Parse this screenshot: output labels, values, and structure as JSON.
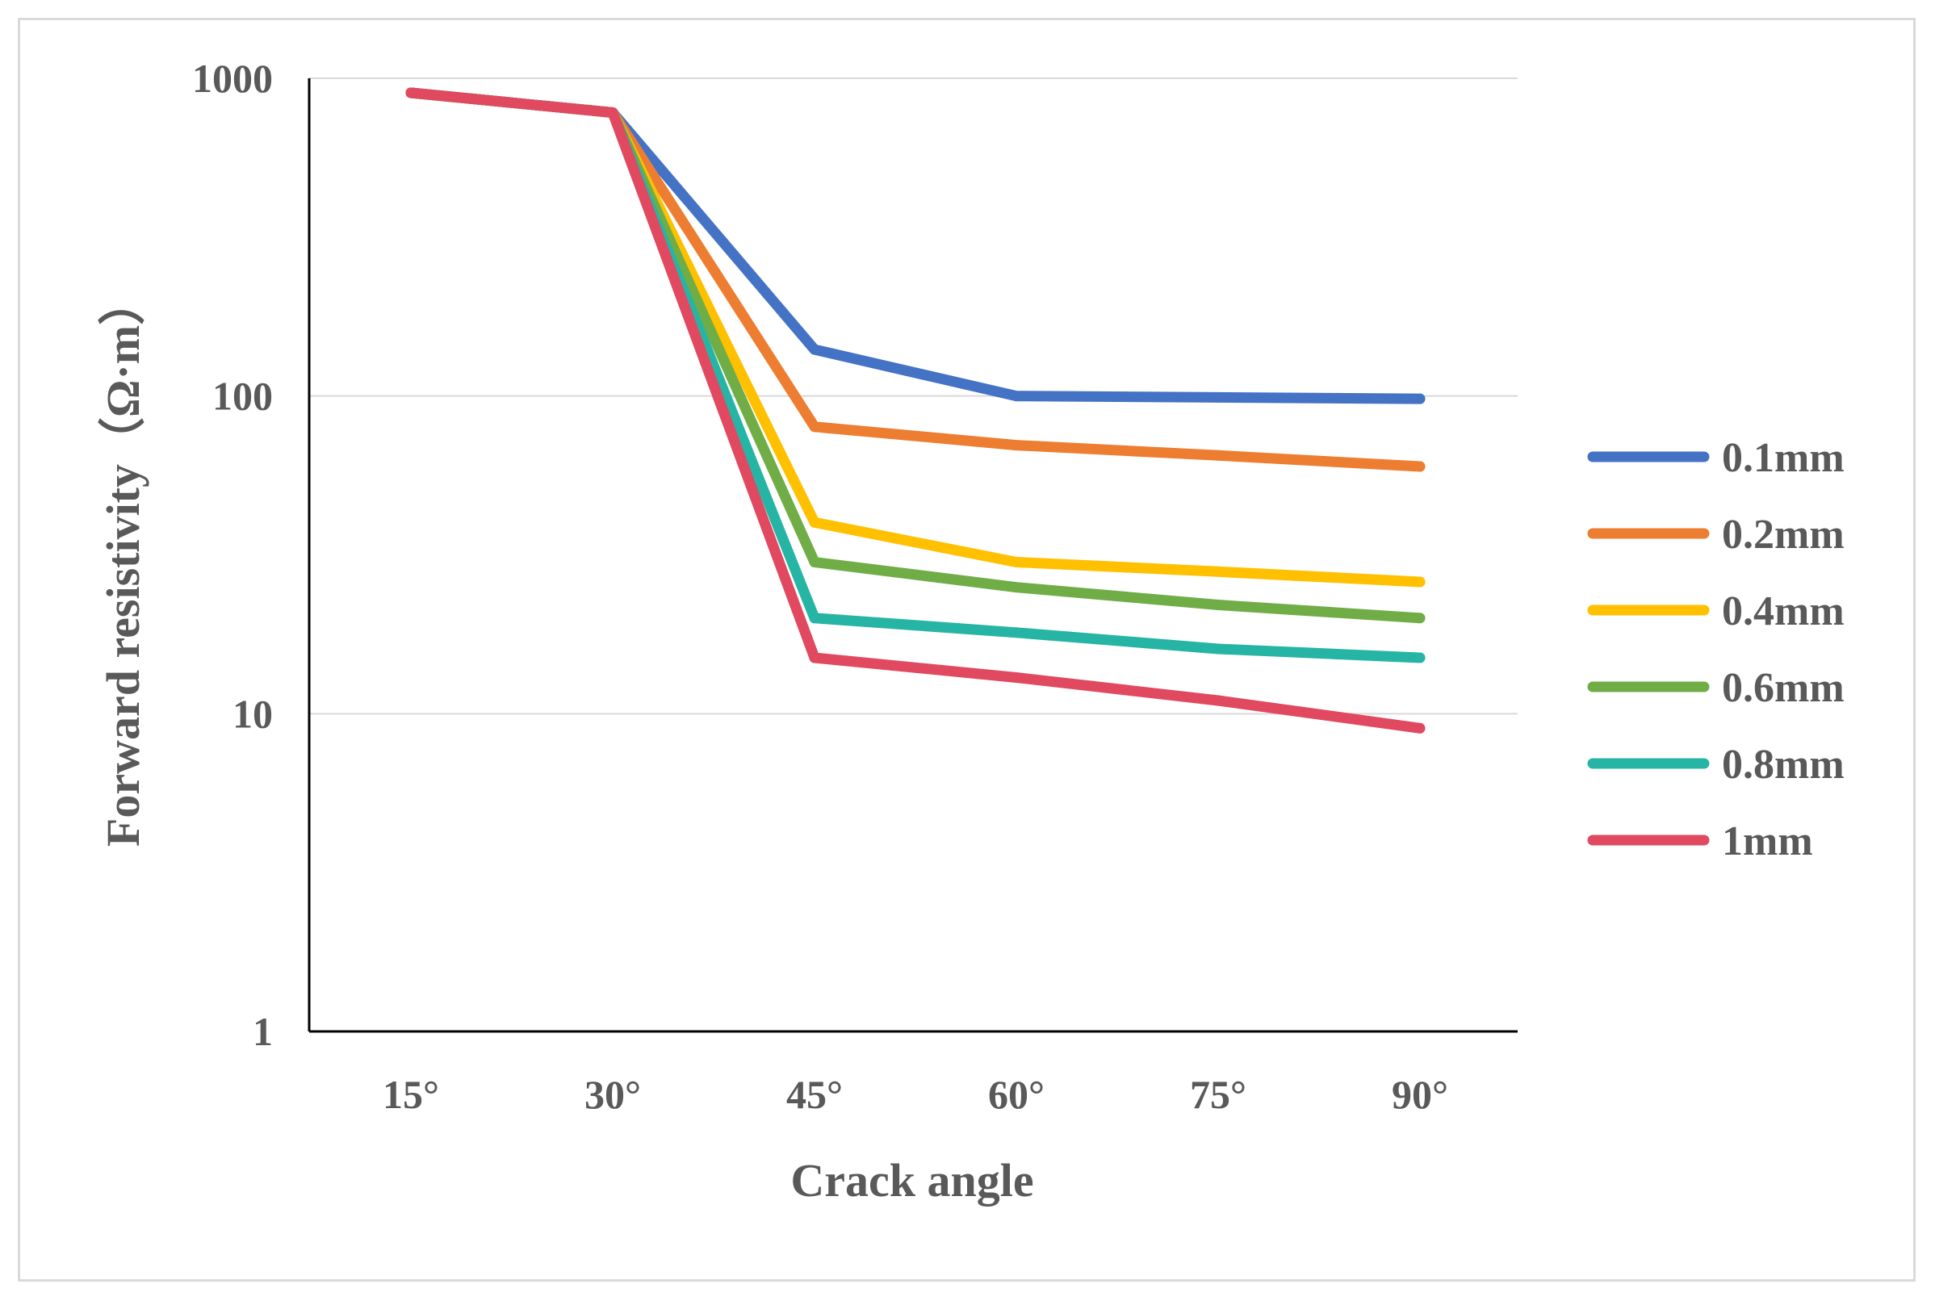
{
  "chart_data": {
    "type": "line",
    "y_scale": "log",
    "xlabel": "Crack angle",
    "ylabel": "Forward resistivity（Ω·m）",
    "categories": [
      "15°",
      "30°",
      "45°",
      "60°",
      "75°",
      "90°"
    ],
    "ylim": [
      1,
      1000
    ],
    "y_ticks": [
      {
        "value": 1000,
        "label": "1000"
      },
      {
        "value": 100,
        "label": "100"
      },
      {
        "value": 10,
        "label": "10"
      },
      {
        "value": 1,
        "label": "1"
      }
    ],
    "grid": true,
    "legend_position": "right",
    "series": [
      {
        "name": "0.1mm",
        "color": "#4472C4",
        "values": [
          900,
          780,
          140,
          100,
          99,
          98
        ]
      },
      {
        "name": "0.2mm",
        "color": "#ED7D31",
        "values": [
          900,
          780,
          80,
          70,
          65,
          60
        ]
      },
      {
        "name": "0.4mm",
        "color": "#FFC000",
        "values": [
          900,
          780,
          40,
          30,
          28,
          26
        ]
      },
      {
        "name": "0.6mm",
        "color": "#70AD47",
        "values": [
          900,
          780,
          30,
          25,
          22,
          20
        ]
      },
      {
        "name": "0.8mm",
        "color": "#26B5A4",
        "values": [
          900,
          780,
          20,
          18,
          16,
          15
        ]
      },
      {
        "name": "1mm",
        "color": "#E0495F",
        "values": [
          900,
          780,
          15,
          13,
          11,
          9
        ]
      }
    ]
  }
}
